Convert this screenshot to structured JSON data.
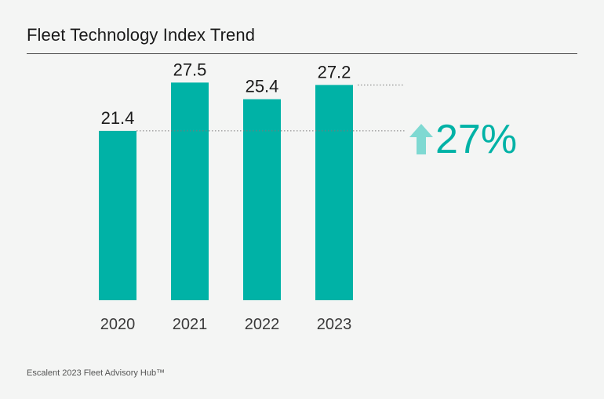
{
  "header": {
    "title": "Fleet Technology Index Trend"
  },
  "chart_data": {
    "type": "bar",
    "title": "Fleet Technology Index Trend",
    "categories": [
      "2020",
      "2021",
      "2022",
      "2023"
    ],
    "values": [
      21.4,
      27.5,
      25.4,
      27.2
    ],
    "data_labels": [
      "21.4",
      "27.5",
      "25.4",
      "27.2"
    ],
    "xlabel": "",
    "ylabel": "",
    "ylim": [
      0,
      31
    ],
    "grid": false,
    "bar_color": "#00b2a6",
    "annotation": {
      "text": "27%",
      "direction": "up",
      "from_value": 21.4,
      "to_value": 27.2,
      "text_color": "#00b2a6",
      "arrow_color": "#7fd9d2"
    }
  },
  "footer": {
    "source": "Escalent 2023 Fleet Advisory Hub™"
  }
}
